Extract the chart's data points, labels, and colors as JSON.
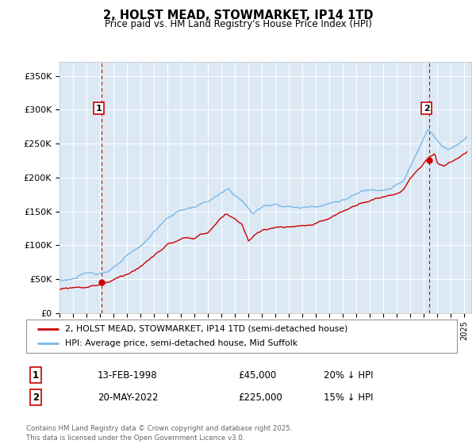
{
  "title": "2, HOLST MEAD, STOWMARKET, IP14 1TD",
  "subtitle": "Price paid vs. HM Land Registry's House Price Index (HPI)",
  "ylabel_ticks": [
    "£0",
    "£50K",
    "£100K",
    "£150K",
    "£200K",
    "£250K",
    "£300K",
    "£350K"
  ],
  "ylim": [
    0,
    370000
  ],
  "xlim_start": 1995.0,
  "xlim_end": 2025.5,
  "bg_color": "#dce9f5",
  "line_color_hpi": "#7ab8e8",
  "line_color_price": "#cc0000",
  "marker1_x": 1998.12,
  "marker1_y": 45000,
  "marker2_x": 2022.38,
  "marker2_y": 225000,
  "legend_label1": "2, HOLST MEAD, STOWMARKET, IP14 1TD (semi-detached house)",
  "legend_label2": "HPI: Average price, semi-detached house, Mid Suffolk",
  "annotation1_label": "1",
  "annotation2_label": "2",
  "table_row1": [
    "1",
    "13-FEB-1998",
    "£45,000",
    "20% ↓ HPI"
  ],
  "table_row2": [
    "2",
    "20-MAY-2022",
    "£225,000",
    "15% ↓ HPI"
  ],
  "footer": "Contains HM Land Registry data © Crown copyright and database right 2025.\nThis data is licensed under the Open Government Licence v3.0.",
  "grid_color": "#ffffff",
  "dashed_line_color": "#cc0000",
  "marker_dot_color": "#cc0000"
}
